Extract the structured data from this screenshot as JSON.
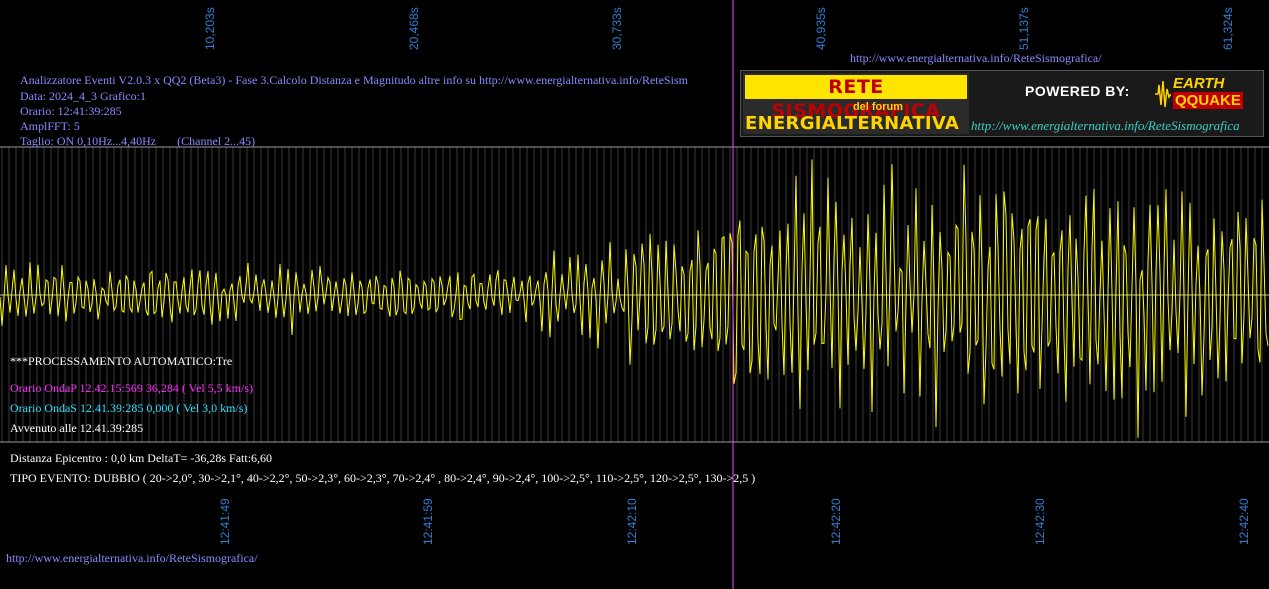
{
  "top_ticks": [
    "10,203s",
    "20,468s",
    "30,733s",
    "40,935s",
    "51,137s",
    "61,324s"
  ],
  "bottom_ticks": [
    "12:41:49",
    "12:41:59",
    "12:42:10",
    "12:42:20",
    "12:42:30",
    "12:42:40"
  ],
  "top_url": "http://www.energialternativa.info/ReteSismografica/",
  "header": {
    "line1": "Analizzatore Eventi V2.0.3 x QQ2 (Beta3) - Fase 3.Calcolo Distanza e Magnitudo altre info su http://www.energialternativa.info/ReteSism",
    "line2": "Data: 2024_4_3 Grafico:1",
    "line3": "Orario: 12:41:39:285",
    "line4": "AmplFFT: 5",
    "line5": "Taglio: ON 0,10Hz...4,40Hz       (Channel 2...45)"
  },
  "logo": {
    "rete": "RETE SISMOGRAFICA",
    "del_forum": "del forum",
    "energ": "ENERGIALTERNATIVA",
    "powered": "POWERED BY:",
    "earth": "EARTH",
    "qquake": "QQUAKE",
    "url": "http://www.energialternativa.info/ReteSismografica"
  },
  "processing": {
    "title": "***PROCESSAMENTO AUTOMATICO:Tre",
    "onda_p": "Orario OndaP 12.42.15:569  36,284 ( Vel 5,5 km/s)",
    "onda_s": "Orario OndaS 12.41.39:285  0,000 ( Vel 3,0 km/s)",
    "avvenuto": "Avvenuto alle 12.41.39:285"
  },
  "result": {
    "distanza": "Distanza Epicentro : 0,0 km DeltaT= -36,28s  Fatt:6,60",
    "tipo": "TIPO EVENTO: DUBBIO ( 20->2,0°, 30->2,1°, 40->2,2°, 50->2,3°, 60->2,3°, 70->2,4° , 80->2,4°, 90->2,4°, 100->2,5°, 110->2,5°, 120->2,5°, 130->2,5 )"
  },
  "bottom_url": "http://www.energialternativa.info/ReteSismografica/",
  "colors": {
    "background": "#000000",
    "trace": "#ffff00",
    "marker": "#ff40ff",
    "header_text": "#8a8aff",
    "tick_text": "#2f7fd0",
    "onda_p": "#ff30ff",
    "onda_s": "#30e0ff",
    "white_text": "#ffffff"
  }
}
